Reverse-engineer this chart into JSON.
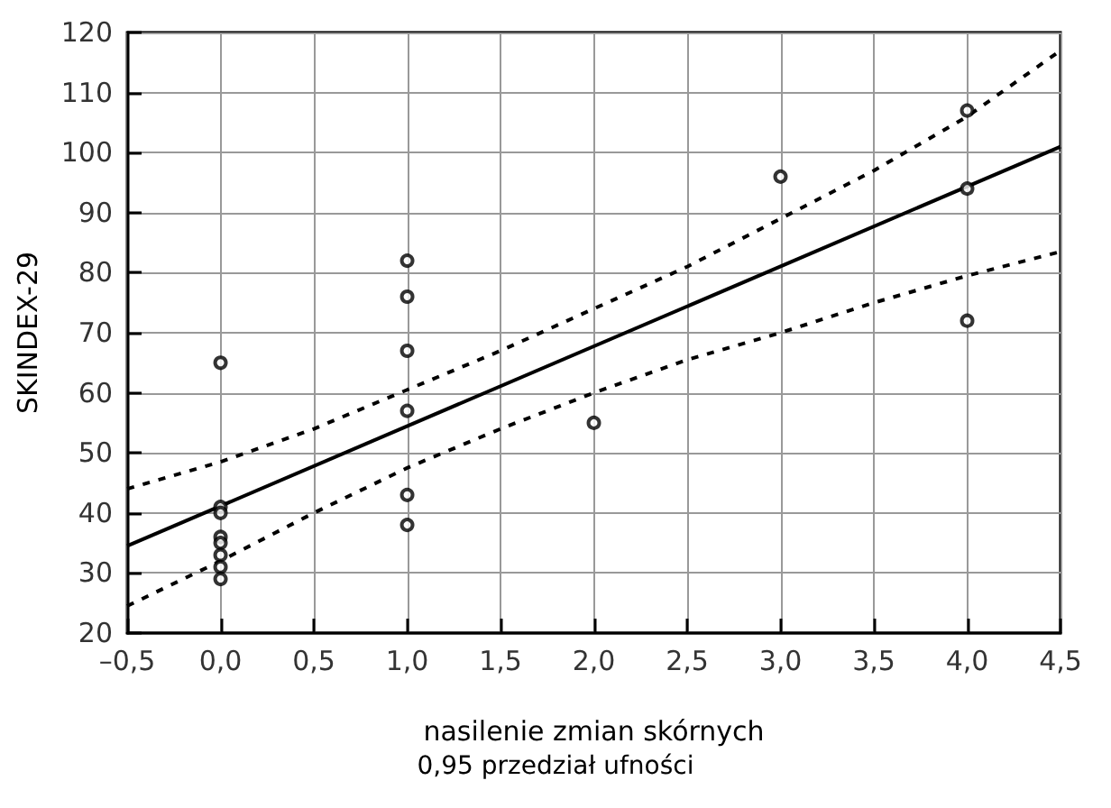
{
  "chart_data": {
    "type": "scatter",
    "xlabel": "nasilenie zmian skórnych",
    "ylabel": "SKINDEX-29",
    "annotations": [
      "0,95 przedział ufności"
    ],
    "series": [
      {
        "color": "#000000",
        "marker": "circle",
        "x": [
          0,
          0,
          0,
          0,
          0,
          0,
          0,
          0,
          1,
          1,
          1,
          1,
          1,
          1,
          2,
          3,
          4,
          4,
          4
        ],
        "values": [
          65,
          41,
          40,
          36,
          35,
          33,
          31,
          29,
          82,
          76,
          67,
          57,
          43,
          38,
          55,
          96,
          107,
          94,
          72
        ]
      },
      {
        "type": "line",
        "color": "#000000",
        "line_style": "solid",
        "marker": "none",
        "x": [
          -0.5,
          4.5
        ],
        "values": [
          34.5,
          101
        ]
      },
      {
        "type": "line",
        "color": "#000000",
        "line_style": "dashed",
        "marker": "none",
        "x": [
          -0.5,
          0,
          0.5,
          1,
          1.5,
          2,
          2.5,
          3,
          3.5,
          4,
          4.5
        ],
        "values": [
          44,
          48.5,
          54,
          60.5,
          67,
          74,
          81,
          89,
          97,
          106,
          117
        ]
      },
      {
        "type": "line",
        "color": "#000000",
        "line_style": "dashed",
        "marker": "none",
        "x": [
          -0.5,
          0,
          0.5,
          1,
          1.5,
          2,
          2.5,
          3,
          3.5,
          4,
          4.5
        ],
        "values": [
          24.5,
          32,
          40,
          47.5,
          54,
          60,
          65.5,
          70,
          75,
          79.5,
          83.5
        ]
      }
    ],
    "xlim": [
      -0.5,
      4.5
    ],
    "xticks": [
      {
        "value": -0.5,
        "label": "–0,5"
      },
      {
        "value": 0,
        "label": "0,0"
      },
      {
        "value": 0.5,
        "label": "0,5"
      },
      {
        "value": 1,
        "label": "1,0"
      },
      {
        "value": 1.5,
        "label": "1,5"
      },
      {
        "value": 2,
        "label": "2,0"
      },
      {
        "value": 2.5,
        "label": "2,5"
      },
      {
        "value": 3,
        "label": "3,0"
      },
      {
        "value": 3.5,
        "label": "3,5"
      },
      {
        "value": 4,
        "label": "4,0"
      },
      {
        "value": 4.5,
        "label": "4,5"
      }
    ],
    "ylim": [
      20,
      120
    ],
    "yticks": [
      20,
      30,
      40,
      50,
      60,
      70,
      80,
      90,
      100,
      110,
      120
    ],
    "grid": true
  }
}
